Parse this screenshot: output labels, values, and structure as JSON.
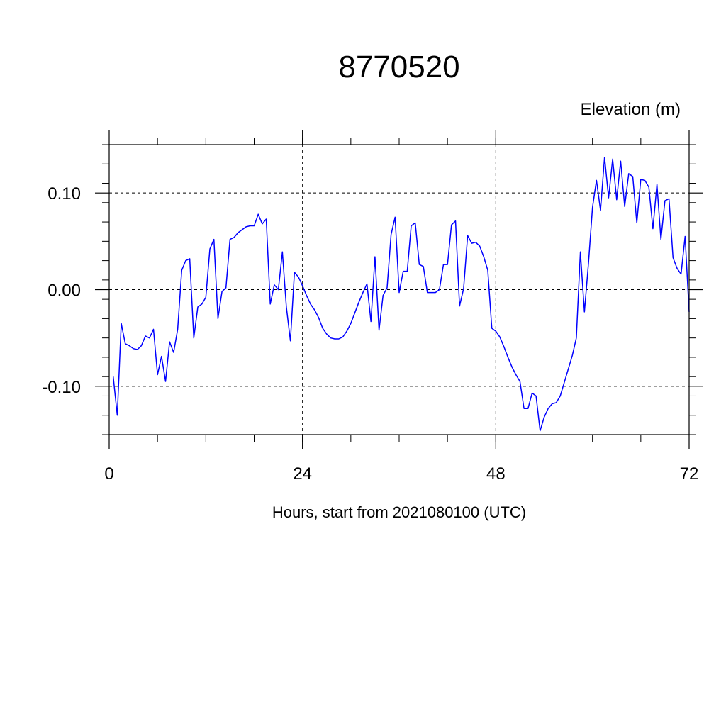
{
  "chart_data": {
    "type": "line",
    "title": "8770520",
    "ylabel": "Elevation (m)",
    "xlabel": "Hours, start from 2021080100 (UTC)",
    "xlim": [
      0,
      72
    ],
    "ylim": [
      -0.15,
      0.15
    ],
    "x_ticks": [
      0,
      24,
      48,
      72
    ],
    "x_tick_labels": [
      "0",
      "24",
      "48",
      "72"
    ],
    "y_ticks": [
      -0.1,
      0.0,
      0.1
    ],
    "y_tick_labels": [
      "-0.10",
      "0.00",
      "0.10"
    ],
    "grid": "dashed at major ticks",
    "line_color": "#0000ff",
    "series": [
      {
        "x": [
          0.5,
          1.0,
          1.5,
          2.0,
          2.5,
          3.0,
          3.5,
          4.0,
          4.5,
          5.0,
          5.5,
          6.0,
          6.5,
          7.0,
          7.5,
          8.0,
          8.5,
          9.0,
          9.5,
          10.0,
          10.5,
          11.0,
          11.5,
          12.0,
          12.5,
          13.0,
          13.5,
          14.0,
          14.5,
          15.0,
          15.5,
          16.0,
          16.5,
          17.0,
          17.5,
          18.0,
          18.5,
          19.0,
          19.5,
          20.0,
          20.5,
          21.0,
          21.5,
          22.0,
          22.5,
          23.0,
          23.5,
          24.0,
          24.5,
          25.0,
          25.5,
          26.0,
          26.5,
          27.0,
          27.5,
          28.0,
          28.5,
          29.0,
          29.5,
          30.0,
          30.5,
          31.0,
          31.5,
          32.0,
          32.5,
          33.0,
          33.5,
          34.0,
          34.5,
          35.0,
          35.5,
          36.0,
          36.5,
          37.0,
          37.5,
          38.0,
          38.5,
          39.0,
          39.5,
          40.0,
          40.5,
          41.0,
          41.5,
          42.0,
          42.5,
          43.0,
          43.5,
          44.0,
          44.5,
          45.0,
          45.5,
          46.0,
          46.5,
          47.0,
          47.5,
          48.0,
          48.5,
          49.0,
          49.5,
          50.0,
          50.5,
          51.0,
          51.5,
          52.0,
          52.5,
          53.0,
          53.5,
          54.0,
          54.5,
          55.0,
          55.5,
          56.0,
          56.5,
          57.0,
          57.5,
          58.0,
          58.5,
          59.0,
          59.5,
          60.0,
          60.5,
          61.0,
          61.5,
          62.0,
          62.5,
          63.0,
          63.5,
          64.0,
          64.5,
          65.0,
          65.5,
          66.0,
          66.5,
          67.0,
          67.5,
          68.0,
          68.5,
          69.0,
          69.5,
          70.0,
          70.5,
          71.0,
          71.5,
          72.0
        ],
        "y": [
          -0.09,
          -0.13,
          -0.035,
          -0.056,
          -0.058,
          -0.061,
          -0.062,
          -0.058,
          -0.048,
          -0.05,
          -0.041,
          -0.088,
          -0.069,
          -0.095,
          -0.054,
          -0.065,
          -0.041,
          0.02,
          0.03,
          0.032,
          -0.05,
          -0.018,
          -0.015,
          -0.008,
          0.042,
          0.052,
          -0.03,
          -0.002,
          0.002,
          0.052,
          0.054,
          0.059,
          0.062,
          0.065,
          0.066,
          0.066,
          0.078,
          0.068,
          0.073,
          -0.015,
          0.005,
          0.0,
          0.039,
          -0.018,
          -0.053,
          0.018,
          0.013,
          0.004,
          -0.006,
          -0.015,
          -0.021,
          -0.029,
          -0.04,
          -0.046,
          -0.05,
          -0.051,
          -0.051,
          -0.049,
          -0.043,
          -0.035,
          -0.024,
          -0.013,
          -0.003,
          0.006,
          -0.033,
          0.034,
          -0.042,
          -0.006,
          0.002,
          0.057,
          0.075,
          -0.003,
          0.019,
          0.019,
          0.066,
          0.069,
          0.026,
          0.024,
          -0.003,
          -0.003,
          -0.003,
          0.0,
          0.026,
          0.026,
          0.067,
          0.071,
          -0.017,
          0.001,
          0.056,
          0.048,
          0.049,
          0.045,
          0.034,
          0.02,
          -0.04,
          -0.043,
          -0.049,
          -0.059,
          -0.07,
          -0.08,
          -0.088,
          -0.095,
          -0.123,
          -0.123,
          -0.107,
          -0.11,
          -0.146,
          -0.132,
          -0.123,
          -0.118,
          -0.117,
          -0.11,
          -0.096,
          -0.082,
          -0.068,
          -0.05,
          0.039,
          -0.023,
          0.027,
          0.085,
          0.113,
          0.082,
          0.137,
          0.095,
          0.135,
          0.093,
          0.133,
          0.086,
          0.12,
          0.117,
          0.069,
          0.114,
          0.113,
          0.106,
          0.063,
          0.109,
          0.052,
          0.092,
          0.094,
          0.033,
          0.022,
          0.016,
          0.055,
          -0.023
        ]
      }
    ]
  }
}
